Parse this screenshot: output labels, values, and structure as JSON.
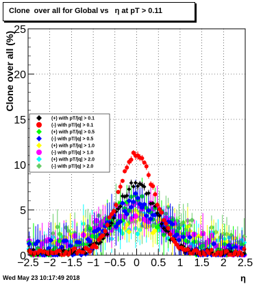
{
  "title": "Clone  over all for Global vs   η at pT > 0.11",
  "footer": "Wed May 23 10:17:49 2018",
  "chart_data": {
    "type": "scatter",
    "title": "Clone  over all for Global vs   η at pT > 0.11",
    "xlabel": "η",
    "ylabel": "Clone  over all (%)",
    "xlim": [
      -2.5,
      2.5
    ],
    "ylim": [
      0,
      25
    ],
    "x_ticks": [
      -2.5,
      -2,
      -1.5,
      -1,
      -0.5,
      0,
      0.5,
      1,
      1.5,
      2,
      2.5
    ],
    "y_ticks": [
      0,
      5,
      10,
      15,
      20,
      25
    ],
    "x_tick_labels": [
      "−2.5",
      "−2",
      "−1.5",
      "−1",
      "−0.5",
      "0",
      "0.5",
      "1",
      "1.5",
      "2",
      "2.5"
    ],
    "y_tick_labels": [
      "0",
      "5",
      "10",
      "15",
      "20",
      "25"
    ],
    "grid": true,
    "legend_position": "left",
    "series": [
      {
        "name": "(+) with pT/|q| > 0.1",
        "color": "#000000",
        "marker": "diamond",
        "peak": 7.6,
        "width": 0.45,
        "floor": 0.5
      },
      {
        "name": "(-) with pT/|q| > 0.1",
        "color": "#ff0000",
        "marker": "circle",
        "peak": 10.8,
        "width": 0.42,
        "floor": 0.5
      },
      {
        "name": "(+) with pT/|q| > 0.5",
        "color": "#00ff00",
        "marker": "diamond",
        "peak": 5.5,
        "width": 0.6,
        "floor": 0.8
      },
      {
        "name": "(-) with pT/|q| > 0.5",
        "color": "#0000ff",
        "marker": "diamond",
        "peak": 5.5,
        "width": 0.6,
        "floor": 0.8
      },
      {
        "name": "(+) with pT/|q| > 1.0",
        "color": "#ffff00",
        "marker": "diamond",
        "peak": 3.5,
        "width": 0.9,
        "floor": 0.8
      },
      {
        "name": "(-) with pT/|q| > 1.0",
        "color": "#ff00ff",
        "marker": "circle",
        "peak": 4.5,
        "width": 0.8,
        "floor": 0.8
      },
      {
        "name": "(+) with pT/|q| > 2.0",
        "color": "#00ffff",
        "marker": "diamond",
        "peak": 3.2,
        "width": 1.0,
        "floor": 1.0
      },
      {
        "name": "(-) with pT/|q| > 2.0",
        "color": "#66cc66",
        "marker": "diamond",
        "peak": 4.0,
        "width": 1.1,
        "floor": 1.2
      }
    ]
  }
}
